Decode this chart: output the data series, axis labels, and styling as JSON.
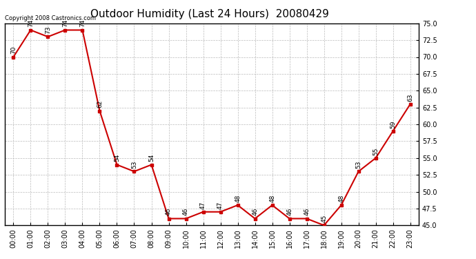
{
  "title": "Outdoor Humidity (Last 24 Hours)  20080429",
  "copyright_text": "Copyright 2008 Castronics.com",
  "hours": [
    "00:00",
    "01:00",
    "02:00",
    "03:00",
    "04:00",
    "05:00",
    "06:00",
    "07:00",
    "08:00",
    "09:00",
    "10:00",
    "11:00",
    "12:00",
    "13:00",
    "14:00",
    "15:00",
    "16:00",
    "17:00",
    "18:00",
    "19:00",
    "20:00",
    "21:00",
    "22:00",
    "23:00"
  ],
  "values": [
    70,
    74,
    73,
    74,
    74,
    62,
    54,
    53,
    54,
    46,
    46,
    47,
    47,
    48,
    46,
    48,
    46,
    46,
    45,
    48,
    53,
    55,
    59,
    63
  ],
  "line_color": "#cc0000",
  "marker_color": "#cc0000",
  "bg_color": "#ffffff",
  "grid_color": "#bbbbbb",
  "ylim_min": 45.0,
  "ylim_max": 75.0,
  "yticks": [
    45.0,
    47.5,
    50.0,
    52.5,
    55.0,
    57.5,
    60.0,
    62.5,
    65.0,
    67.5,
    70.0,
    72.5,
    75.0
  ],
  "title_fontsize": 11,
  "label_fontsize": 6.5,
  "tick_fontsize": 7,
  "copyright_fontsize": 6
}
